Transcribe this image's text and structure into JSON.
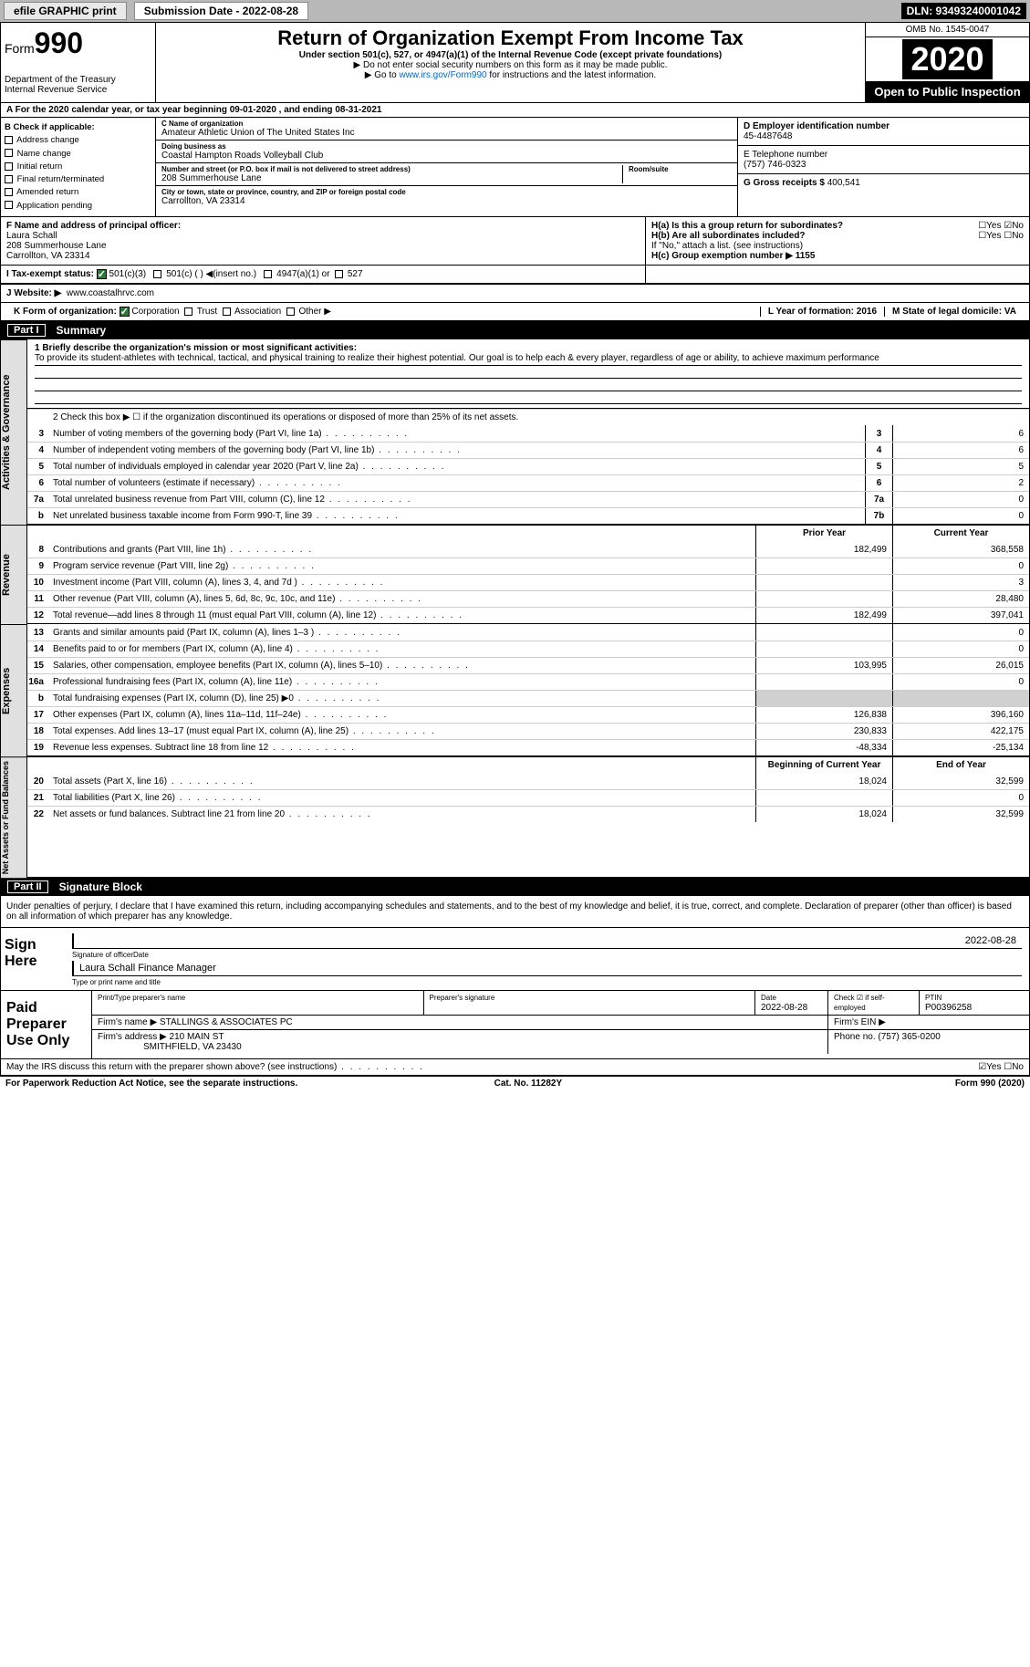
{
  "topbar": {
    "efile": "efile GRAPHIC print",
    "submission": "Submission Date - 2022-08-28",
    "dln": "DLN: 93493240001042"
  },
  "header": {
    "form_prefix": "Form",
    "form_num": "990",
    "dept": "Department of the Treasury\nInternal Revenue Service",
    "title": "Return of Organization Exempt From Income Tax",
    "subtitle": "Under section 501(c), 527, or 4947(a)(1) of the Internal Revenue Code (except private foundations)",
    "note1": "▶ Do not enter social security numbers on this form as it may be made public.",
    "note2_pre": "▶ Go to ",
    "note2_link": "www.irs.gov/Form990",
    "note2_post": " for instructions and the latest information.",
    "omb": "OMB No. 1545-0047",
    "year": "2020",
    "open": "Open to Public Inspection"
  },
  "row_a": "A For the 2020 calendar year, or tax year beginning 09-01-2020   , and ending 08-31-2021",
  "section_b": {
    "label": "B Check if applicable:",
    "opts": [
      "Address change",
      "Name change",
      "Initial return",
      "Final return/terminated",
      "Amended return",
      "Application pending"
    ]
  },
  "section_c": {
    "name_lbl": "C Name of organization",
    "name": "Amateur Athletic Union of The United States Inc",
    "dba_lbl": "Doing business as",
    "dba": "Coastal Hampton Roads Volleyball Club",
    "addr_lbl": "Number and street (or P.O. box if mail is not delivered to street address)",
    "room_lbl": "Room/suite",
    "addr": "208 Summerhouse Lane",
    "city_lbl": "City or town, state or province, country, and ZIP or foreign postal code",
    "city": "Carrollton, VA  23314"
  },
  "section_d": {
    "lbl": "D Employer identification number",
    "val": "45-4487648"
  },
  "section_e": {
    "lbl": "E Telephone number",
    "val": "(757) 746-0323"
  },
  "section_g": {
    "lbl": "G Gross receipts $",
    "val": "400,541"
  },
  "section_f": {
    "lbl": "F  Name and address of principal officer:",
    "name": "Laura Schall",
    "addr1": "208 Summerhouse Lane",
    "addr2": "Carrollton, VA  23314"
  },
  "section_h": {
    "ha": "H(a)  Is this a group return for subordinates?",
    "ha_yn": "☐Yes ☑No",
    "hb": "H(b)  Are all subordinates included?",
    "hb_yn": "☐Yes ☐No",
    "hb_note": "If \"No,\" attach a list. (see instructions)",
    "hc": "H(c)  Group exemption number ▶   1155"
  },
  "row_i": {
    "lbl": "I   Tax-exempt status:",
    "o1": "501(c)(3)",
    "o2": "501(c) (  ) ◀(insert no.)",
    "o3": "4947(a)(1) or",
    "o4": "527"
  },
  "row_j": {
    "lbl": "J  Website: ▶",
    "val": "www.coastalhrvc.com"
  },
  "row_k": {
    "lbl": "K Form of organization:",
    "o1": "Corporation",
    "o2": "Trust",
    "o3": "Association",
    "o4": "Other ▶"
  },
  "row_l": "L Year of formation: 2016",
  "row_m": "M State of legal domicile: VA",
  "part1": {
    "hdr": "Part I",
    "title": "Summary",
    "l1a": "1  Briefly describe the organization's mission or most significant activities:",
    "l1b": "To provide its student-athletes with technical, tactical, and physical training to realize their highest potential. Our goal is to help each & every player, regardless of age or ability, to achieve maximum performance",
    "l2": "2   Check this box ▶ ☐  if the organization discontinued its operations or disposed of more than 25% of its net assets.",
    "rows_gov": [
      {
        "n": "3",
        "t": "Number of voting members of the governing body (Part VI, line 1a)",
        "b": "3",
        "v": "6"
      },
      {
        "n": "4",
        "t": "Number of independent voting members of the governing body (Part VI, line 1b)",
        "b": "4",
        "v": "6"
      },
      {
        "n": "5",
        "t": "Total number of individuals employed in calendar year 2020 (Part V, line 2a)",
        "b": "5",
        "v": "5"
      },
      {
        "n": "6",
        "t": "Total number of volunteers (estimate if necessary)",
        "b": "6",
        "v": "2"
      },
      {
        "n": "7a",
        "t": "Total unrelated business revenue from Part VIII, column (C), line 12",
        "b": "7a",
        "v": "0"
      },
      {
        "n": "b",
        "t": "Net unrelated business taxable income from Form 990-T, line 39",
        "b": "7b",
        "v": "0"
      }
    ],
    "col_prior": "Prior Year",
    "col_curr": "Current Year",
    "rows_rev": [
      {
        "n": "8",
        "t": "Contributions and grants (Part VIII, line 1h)",
        "p": "182,499",
        "c": "368,558"
      },
      {
        "n": "9",
        "t": "Program service revenue (Part VIII, line 2g)",
        "p": "",
        "c": "0"
      },
      {
        "n": "10",
        "t": "Investment income (Part VIII, column (A), lines 3, 4, and 7d )",
        "p": "",
        "c": "3"
      },
      {
        "n": "11",
        "t": "Other revenue (Part VIII, column (A), lines 5, 6d, 8c, 9c, 10c, and 11e)",
        "p": "",
        "c": "28,480"
      },
      {
        "n": "12",
        "t": "Total revenue—add lines 8 through 11 (must equal Part VIII, column (A), line 12)",
        "p": "182,499",
        "c": "397,041"
      }
    ],
    "rows_exp": [
      {
        "n": "13",
        "t": "Grants and similar amounts paid (Part IX, column (A), lines 1–3 )",
        "p": "",
        "c": "0"
      },
      {
        "n": "14",
        "t": "Benefits paid to or for members (Part IX, column (A), line 4)",
        "p": "",
        "c": "0"
      },
      {
        "n": "15",
        "t": "Salaries, other compensation, employee benefits (Part IX, column (A), lines 5–10)",
        "p": "103,995",
        "c": "26,015"
      },
      {
        "n": "16a",
        "t": "Professional fundraising fees (Part IX, column (A), line 11e)",
        "p": "",
        "c": "0"
      },
      {
        "n": "b",
        "t": "Total fundraising expenses (Part IX, column (D), line 25) ▶0",
        "p": "grey",
        "c": "grey"
      },
      {
        "n": "17",
        "t": "Other expenses (Part IX, column (A), lines 11a–11d, 11f–24e)",
        "p": "126,838",
        "c": "396,160"
      },
      {
        "n": "18",
        "t": "Total expenses. Add lines 13–17 (must equal Part IX, column (A), line 25)",
        "p": "230,833",
        "c": "422,175"
      },
      {
        "n": "19",
        "t": "Revenue less expenses. Subtract line 18 from line 12",
        "p": "-48,334",
        "c": "-25,134"
      }
    ],
    "col_beg": "Beginning of Current Year",
    "col_end": "End of Year",
    "rows_net": [
      {
        "n": "20",
        "t": "Total assets (Part X, line 16)",
        "p": "18,024",
        "c": "32,599"
      },
      {
        "n": "21",
        "t": "Total liabilities (Part X, line 26)",
        "p": "",
        "c": "0"
      },
      {
        "n": "22",
        "t": "Net assets or fund balances. Subtract line 21 from line 20",
        "p": "18,024",
        "c": "32,599"
      }
    ]
  },
  "part2": {
    "hdr": "Part II",
    "title": "Signature Block",
    "decl": "Under penalties of perjury, I declare that I have examined this return, including accompanying schedules and statements, and to the best of my knowledge and belief, it is true, correct, and complete. Declaration of preparer (other than officer) is based on all information of which preparer has any knowledge.",
    "sign_here": "Sign Here",
    "sig_officer": "Signature of officer",
    "sig_date": "2022-08-28",
    "sig_date_lbl": "Date",
    "sig_name": "Laura Schall Finance Manager",
    "sig_type": "Type or print name and title",
    "paid": "Paid Preparer Use Only",
    "p_name_lbl": "Print/Type preparer's name",
    "p_sig_lbl": "Preparer's signature",
    "p_date_lbl": "Date",
    "p_date": "2022-08-28",
    "p_chk": "Check ☑ if self-employed",
    "p_ptin_lbl": "PTIN",
    "p_ptin": "P00396258",
    "firm_name_lbl": "Firm's name   ▶",
    "firm_name": "STALLINGS & ASSOCIATES PC",
    "firm_ein_lbl": "Firm's EIN ▶",
    "firm_addr_lbl": "Firm's address ▶",
    "firm_addr1": "210 MAIN ST",
    "firm_addr2": "SMITHFIELD, VA  23430",
    "firm_phone_lbl": "Phone no.",
    "firm_phone": "(757) 365-0200",
    "discuss": "May the IRS discuss this return with the preparer shown above? (see instructions)",
    "discuss_yn": "☑Yes ☐No"
  },
  "footer": {
    "l": "For Paperwork Reduction Act Notice, see the separate instructions.",
    "c": "Cat. No. 11282Y",
    "r": "Form 990 (2020)"
  },
  "colors": {
    "green": "#2a7a3a",
    "grey": "#d0d0d0",
    "topbar": "#b8b8b8",
    "link": "#0066cc"
  }
}
